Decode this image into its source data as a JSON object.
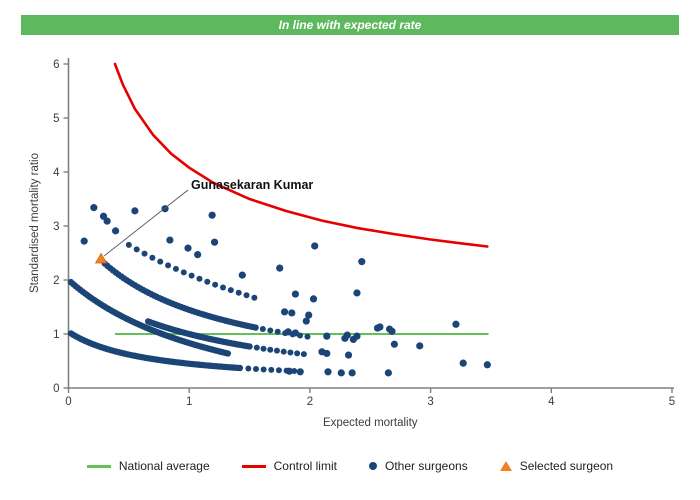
{
  "header": {
    "banner_text": "In line with expected rate",
    "banner_color": "#5eb95e"
  },
  "chart_data": {
    "type": "scatter",
    "xlabel": "Expected mortality",
    "ylabel": "Standardised mortality ratio",
    "xlim": [
      0,
      5
    ],
    "ylim": [
      0,
      6
    ],
    "x_ticks": [
      0,
      1,
      2,
      3,
      4,
      5
    ],
    "y_ticks": [
      0,
      1,
      2,
      3,
      4,
      5,
      6
    ],
    "grid": false,
    "annotation": {
      "label": "Gunasekaran Kumar",
      "target_x": 0.27,
      "target_y": 2.39
    },
    "national_average": {
      "value": 1.0,
      "x_start": 0.385,
      "x_end": 3.48,
      "color": "#66c05a"
    },
    "control_limit": {
      "color": "#e60000",
      "points": [
        [
          0.385,
          6.0
        ],
        [
          0.45,
          5.62
        ],
        [
          0.55,
          5.17
        ],
        [
          0.7,
          4.69
        ],
        [
          0.85,
          4.34
        ],
        [
          1.0,
          4.08
        ],
        [
          1.2,
          3.8
        ],
        [
          1.5,
          3.5
        ],
        [
          1.8,
          3.28
        ],
        [
          2.1,
          3.1
        ],
        [
          2.4,
          2.96
        ],
        [
          2.7,
          2.85
        ],
        [
          3.0,
          2.75
        ],
        [
          3.25,
          2.68
        ],
        [
          3.47,
          2.62
        ]
      ]
    },
    "selected_surgeon": {
      "x": 0.27,
      "y": 2.39,
      "color": "#ef8222"
    },
    "other_surgeons": {
      "color": "#1c4577",
      "scatter": [
        [
          0.13,
          2.72
        ],
        [
          0.21,
          3.34
        ],
        [
          0.29,
          3.18
        ],
        [
          0.32,
          3.09
        ],
        [
          0.39,
          2.91
        ],
        [
          0.55,
          3.28
        ],
        [
          0.8,
          3.32
        ],
        [
          1.19,
          3.2
        ],
        [
          0.84,
          2.74
        ],
        [
          1.21,
          2.7
        ],
        [
          0.99,
          2.59
        ],
        [
          1.07,
          2.47
        ],
        [
          1.44,
          2.09
        ],
        [
          1.75,
          2.22
        ],
        [
          2.04,
          2.63
        ],
        [
          2.43,
          2.34
        ],
        [
          1.88,
          1.74
        ],
        [
          2.03,
          1.65
        ],
        [
          2.39,
          1.76
        ],
        [
          1.79,
          1.41
        ],
        [
          1.85,
          1.39
        ],
        [
          1.99,
          1.35
        ],
        [
          1.97,
          1.24
        ],
        [
          2.56,
          1.11
        ],
        [
          2.66,
          1.09
        ],
        [
          3.21,
          1.18
        ],
        [
          1.82,
          1.04
        ],
        [
          1.88,
          1.02
        ],
        [
          2.14,
          0.96
        ],
        [
          2.31,
          0.98
        ],
        [
          2.39,
          0.96
        ],
        [
          2.29,
          0.92
        ],
        [
          2.36,
          0.9
        ],
        [
          2.58,
          1.13
        ],
        [
          2.68,
          1.05
        ],
        [
          2.7,
          0.81
        ],
        [
          2.91,
          0.78
        ],
        [
          2.1,
          0.67
        ],
        [
          2.14,
          0.64
        ],
        [
          2.32,
          0.61
        ],
        [
          1.83,
          0.31
        ],
        [
          1.92,
          0.3
        ],
        [
          2.15,
          0.3
        ],
        [
          2.26,
          0.28
        ],
        [
          2.35,
          0.28
        ],
        [
          2.65,
          0.28
        ],
        [
          3.27,
          0.46
        ],
        [
          3.47,
          0.43
        ]
      ],
      "bands": [
        {
          "a": 0.664,
          "b": 0.673,
          "c": 0.053,
          "x0": 0.02,
          "x1": 1.42,
          "n": 72,
          "r": 3.2
        },
        {
          "a": 0.664,
          "b": 0.673,
          "c": 0.053,
          "x0": 1.49,
          "x1": 1.87,
          "n": 7,
          "r": 3.0
        },
        {
          "a": 3.932,
          "b": 1.4016,
          "c": -0.805,
          "x0": 0.02,
          "x1": 1.32,
          "n": 68,
          "r": 3.2
        },
        {
          "a": 2.464,
          "b": 1.0747,
          "c": -0.188,
          "x0": 0.66,
          "x1": 1.5,
          "n": 44,
          "r": 3.2
        },
        {
          "a": 2.464,
          "b": 1.0747,
          "c": -0.188,
          "x0": 1.56,
          "x1": 1.95,
          "n": 8,
          "r": 3.0
        },
        {
          "a": 2.72,
          "b": 0.88,
          "c": 0,
          "x0": 0.3,
          "x1": 1.55,
          "n": 56,
          "r": 3.2
        },
        {
          "a": 2.72,
          "b": 0.88,
          "c": 0,
          "x0": 1.61,
          "x1": 1.98,
          "n": 7,
          "r": 3.0
        },
        {
          "a": 9.29,
          "b": 2.1667,
          "c": -0.834,
          "x0": 0.5,
          "x1": 1.54,
          "n": 17,
          "r": 3.0
        }
      ]
    }
  },
  "legend": {
    "items": [
      {
        "label": "National average",
        "swatch": "green-line"
      },
      {
        "label": "Control limit",
        "swatch": "red-line"
      },
      {
        "label": "Other surgeons",
        "swatch": "blue-dot"
      },
      {
        "label": "Selected surgeon",
        "swatch": "orange-triangle"
      }
    ]
  }
}
